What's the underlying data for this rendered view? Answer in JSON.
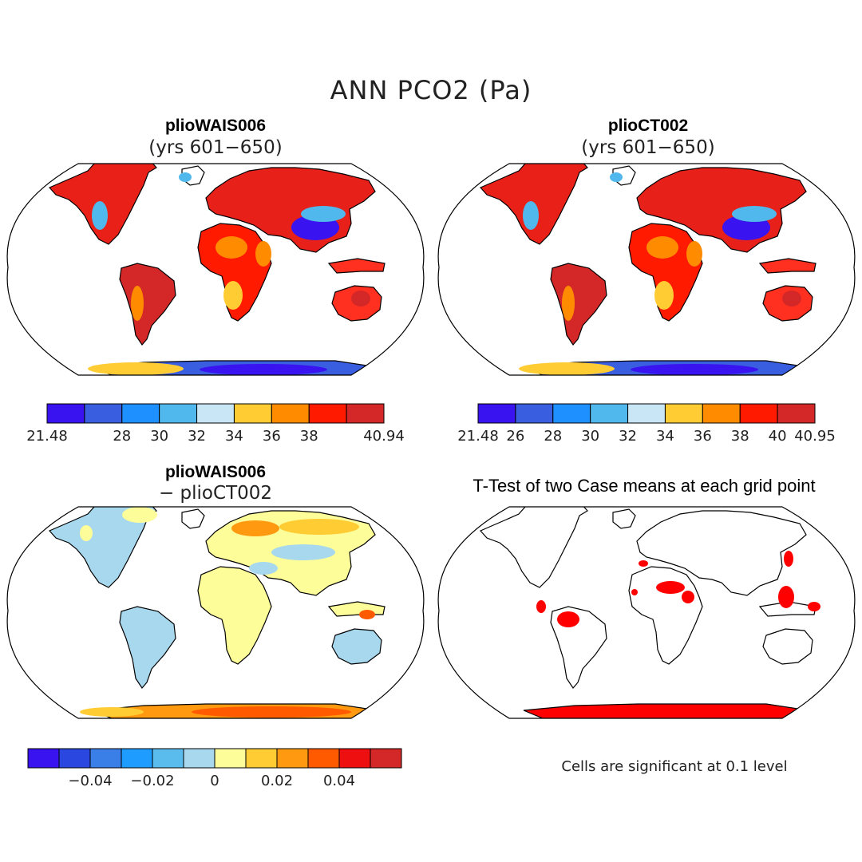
{
  "main_title": "ANN PCO2 (Pa)",
  "panels": {
    "top_left": {
      "title": "plioWAIS006",
      "subtitle": "(yrs 601−650)"
    },
    "top_right": {
      "title": "plioCT002",
      "subtitle": "(yrs 601−650)"
    },
    "bottom_left": {
      "title": "plioWAIS006",
      "subtitle": "− plioCT002"
    },
    "bottom_right": {
      "title": "T-Test of two Case means at each grid point"
    }
  },
  "note": "Cells are significant at 0.1 level",
  "chart_data": [
    {
      "type": "heatmap",
      "title": "plioWAIS006 (yrs 601−650)",
      "colorbar": {
        "colors": [
          "#3a14f0",
          "#3a5ee0",
          "#1e90ff",
          "#50b8ec",
          "#c8e6f5",
          "#ffcc33",
          "#ff8c00",
          "#ff1a00",
          "#d42828"
        ],
        "tick_labels": [
          "21.48",
          "28",
          "30",
          "32",
          "34",
          "36",
          "38",
          "40.94"
        ],
        "range": [
          21.48,
          40.94
        ]
      }
    },
    {
      "type": "heatmap",
      "title": "plioCT002 (yrs 601−650)",
      "colorbar": {
        "colors": [
          "#3a14f0",
          "#3a5ee0",
          "#1e90ff",
          "#50b8ec",
          "#c8e6f5",
          "#ffcc33",
          "#ff8c00",
          "#ff1a00",
          "#d42828"
        ],
        "tick_labels": [
          "21.48",
          "26",
          "28",
          "30",
          "32",
          "34",
          "36",
          "38",
          "40",
          "40.95"
        ],
        "range": [
          21.48,
          40.95
        ]
      }
    },
    {
      "type": "heatmap",
      "title": "plioWAIS006 − plioCT002",
      "colorbar": {
        "colors": [
          "#3a14f0",
          "#2a48e0",
          "#3a7ee8",
          "#1e9cff",
          "#5abcec",
          "#a8d8ee",
          "#fdfd9a",
          "#ffcc33",
          "#ff9a10",
          "#ff5a00",
          "#ee1010",
          "#d42828"
        ],
        "tick_labels": [
          "−0.04",
          "−0.02",
          "0",
          "0.02",
          "0.04"
        ],
        "range": [
          -0.06,
          0.06
        ]
      }
    },
    {
      "type": "heatmap",
      "title": "T-Test of two Case means at each grid point",
      "significant_color": "#ff0000",
      "significance_level": 0.1
    }
  ]
}
